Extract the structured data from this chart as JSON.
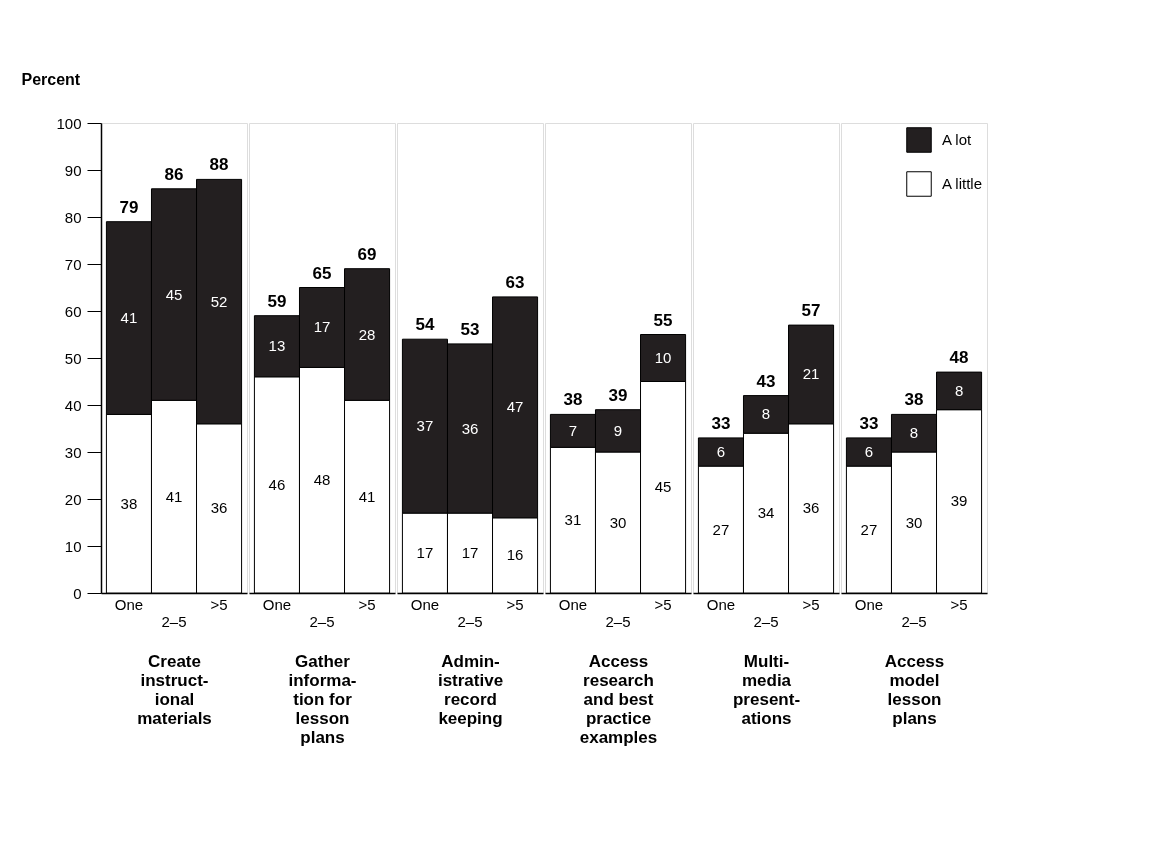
{
  "chart_data": [
    {
      "type": "bar",
      "stacked": true,
      "xlabel": "Create\ninstruct-\nional\nmaterials",
      "ylabel": "Percent",
      "categories": [
        "One",
        "2–5",
        ">5"
      ],
      "ylim": [
        0,
        100
      ],
      "yticks": [
        0,
        10,
        20,
        30,
        40,
        50,
        60,
        70,
        80,
        90,
        100
      ],
      "data_labels": true,
      "totals": [
        "79",
        "86",
        "88"
      ],
      "legend": false,
      "series": [
        {
          "color": "#ffffff",
          "values": [
            38,
            41,
            36
          ]
        },
        {
          "color": "#231f20",
          "values": [
            41,
            45,
            52
          ]
        }
      ]
    },
    {
      "type": "bar",
      "stacked": true,
      "xlabel": "Gather\ninforma-\ntion for\nlesson\nplans",
      "categories": [
        "One",
        "2–5",
        ">5"
      ],
      "ylim": [
        0,
        100
      ],
      "tick_labels": "x",
      "data_labels": true,
      "totals": [
        "59",
        "65",
        "69"
      ],
      "legend": false,
      "series": [
        {
          "color": "#ffffff",
          "values": [
            46,
            48,
            41
          ]
        },
        {
          "color": "#231f20",
          "values": [
            13,
            17,
            28
          ]
        }
      ]
    },
    {
      "type": "bar",
      "stacked": true,
      "xlabel": "Admin-\nistrative\nrecord\nkeeping",
      "categories": [
        "One",
        "2–5",
        ">5"
      ],
      "ylim": [
        0,
        100
      ],
      "tick_labels": "x",
      "data_labels": true,
      "totals": [
        "54",
        "53",
        "63"
      ],
      "legend": false,
      "series": [
        {
          "color": "#ffffff",
          "values": [
            17,
            17,
            16
          ]
        },
        {
          "color": "#231f20",
          "values": [
            37,
            36,
            47
          ]
        }
      ]
    },
    {
      "type": "bar",
      "stacked": true,
      "xlabel": "Access\nresearch\nand best\npractice\nexamples",
      "categories": [
        "One",
        "2–5",
        ">5"
      ],
      "ylim": [
        0,
        100
      ],
      "tick_labels": "x",
      "data_labels": true,
      "totals": [
        "38",
        "39",
        "55"
      ],
      "legend": false,
      "series": [
        {
          "color": "#ffffff",
          "values": [
            31,
            30,
            45
          ]
        },
        {
          "color": "#231f20",
          "values": [
            7,
            9,
            10
          ]
        }
      ]
    },
    {
      "type": "bar",
      "stacked": true,
      "xlabel": "Multi-\nmedia\npresent-\nations",
      "categories": [
        "One",
        "2–5",
        ">5"
      ],
      "ylim": [
        0,
        100
      ],
      "tick_labels": "x",
      "data_labels": true,
      "totals": [
        "33",
        "43",
        "57"
      ],
      "legend": false,
      "series": [
        {
          "color": "#ffffff",
          "values": [
            27,
            34,
            36
          ]
        },
        {
          "color": "#231f20",
          "values": [
            6,
            8,
            21
          ]
        }
      ]
    },
    {
      "type": "bar",
      "stacked": true,
      "xlabel": "Access\nmodel\nlesson\nplans",
      "categories": [
        "One",
        "2–5",
        ">5"
      ],
      "ylim": [
        0,
        100
      ],
      "tick_labels": "x",
      "data_labels": true,
      "totals": [
        "33",
        "38",
        "48"
      ],
      "legend": "top right",
      "series": [
        {
          "name": "A little",
          "color": "#ffffff",
          "values": [
            27,
            30,
            39
          ]
        },
        {
          "name": "A lot",
          "color": "#231f20",
          "values": [
            6,
            8,
            8
          ]
        }
      ]
    }
  ]
}
